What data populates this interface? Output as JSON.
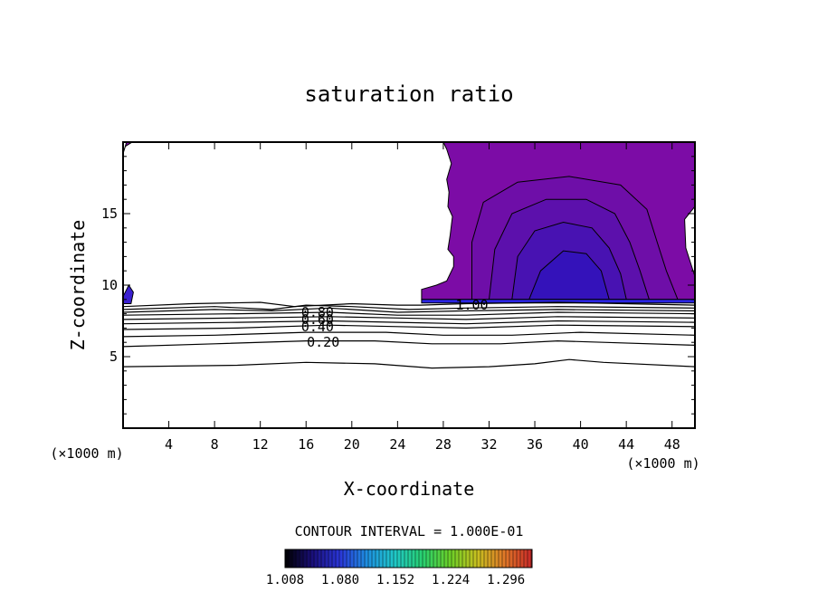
{
  "chart_data": {
    "type": "contour",
    "title": "saturation ratio",
    "xlabel": "X-coordinate",
    "ylabel": "Z-coordinate",
    "x_unit_left": "(×1000 m)",
    "x_unit_right": "(×1000 m)",
    "xlim": [
      0,
      50
    ],
    "ylim": [
      0,
      20
    ],
    "xticks": [
      4,
      8,
      12,
      16,
      20,
      24,
      28,
      32,
      36,
      40,
      44,
      48
    ],
    "yticks": [
      5,
      10,
      15
    ],
    "contour_interval_text": "CONTOUR INTERVAL = 1.000E-01",
    "colorbar": {
      "min": 1.008,
      "max": 1.33,
      "tick_labels": [
        "1.008",
        "1.080",
        "1.152",
        "1.224",
        "1.296"
      ],
      "colors": [
        "#000000",
        "#1a0f7a",
        "#2a36d8",
        "#1e90e0",
        "#20c8c8",
        "#28d070",
        "#6ad028",
        "#c8c020",
        "#e07828",
        "#c82828"
      ]
    },
    "contour_labels": [
      {
        "text": "0.20",
        "x": 17.5,
        "y": 6.0
      },
      {
        "text": "0.40",
        "x": 17.0,
        "y": 7.1
      },
      {
        "text": "0.60",
        "x": 17.0,
        "y": 7.6
      },
      {
        "text": "0.80",
        "x": 17.0,
        "y": 8.1
      },
      {
        "text": "1.00",
        "x": 30.5,
        "y": 8.6
      }
    ],
    "contour_lines": [
      {
        "value": 0.1,
        "points": [
          [
            0,
            4.3
          ],
          [
            10,
            4.4
          ],
          [
            16,
            4.6
          ],
          [
            22,
            4.5
          ],
          [
            27,
            4.2
          ],
          [
            32,
            4.3
          ],
          [
            36,
            4.5
          ],
          [
            39,
            4.8
          ],
          [
            42,
            4.6
          ],
          [
            50,
            4.3
          ]
        ]
      },
      {
        "value": 0.2,
        "points": [
          [
            0,
            5.7
          ],
          [
            8,
            5.9
          ],
          [
            16,
            6.1
          ],
          [
            22,
            6.1
          ],
          [
            27,
            5.9
          ],
          [
            33,
            5.9
          ],
          [
            38,
            6.1
          ],
          [
            42,
            6.0
          ],
          [
            50,
            5.8
          ]
        ]
      },
      {
        "value": 0.3,
        "points": [
          [
            0,
            6.4
          ],
          [
            8,
            6.5
          ],
          [
            16,
            6.7
          ],
          [
            23,
            6.7
          ],
          [
            28,
            6.5
          ],
          [
            34,
            6.5
          ],
          [
            40,
            6.7
          ],
          [
            50,
            6.5
          ]
        ]
      },
      {
        "value": 0.4,
        "points": [
          [
            0,
            6.9
          ],
          [
            10,
            7.0
          ],
          [
            18,
            7.2
          ],
          [
            24,
            7.1
          ],
          [
            30,
            7.0
          ],
          [
            38,
            7.2
          ],
          [
            50,
            7.1
          ]
        ]
      },
      {
        "value": 0.5,
        "points": [
          [
            0,
            7.3
          ],
          [
            10,
            7.4
          ],
          [
            18,
            7.5
          ],
          [
            24,
            7.4
          ],
          [
            30,
            7.3
          ],
          [
            38,
            7.5
          ],
          [
            50,
            7.4
          ]
        ]
      },
      {
        "value": 0.6,
        "points": [
          [
            0,
            7.6
          ],
          [
            10,
            7.7
          ],
          [
            18,
            7.8
          ],
          [
            24,
            7.7
          ],
          [
            30,
            7.6
          ],
          [
            38,
            7.8
          ],
          [
            50,
            7.7
          ]
        ]
      },
      {
        "value": 0.7,
        "points": [
          [
            0,
            7.9
          ],
          [
            10,
            8.0
          ],
          [
            18,
            8.1
          ],
          [
            24,
            7.9
          ],
          [
            30,
            7.9
          ],
          [
            38,
            8.1
          ],
          [
            50,
            8.0
          ]
        ]
      },
      {
        "value": 0.8,
        "points": [
          [
            0,
            8.1
          ],
          [
            8,
            8.3
          ],
          [
            13,
            8.2
          ],
          [
            18,
            8.4
          ],
          [
            24,
            8.1
          ],
          [
            30,
            8.2
          ],
          [
            38,
            8.3
          ],
          [
            50,
            8.2
          ]
        ]
      },
      {
        "value": 0.9,
        "points": [
          [
            0,
            8.3
          ],
          [
            8,
            8.5
          ],
          [
            13,
            8.3
          ],
          [
            16,
            8.6
          ],
          [
            20,
            8.5
          ],
          [
            25,
            8.3
          ],
          [
            30,
            8.4
          ],
          [
            38,
            8.5
          ],
          [
            50,
            8.4
          ]
        ]
      },
      {
        "value": 1.0,
        "points": [
          [
            0,
            8.5
          ],
          [
            6,
            8.7
          ],
          [
            12,
            8.8
          ],
          [
            15,
            8.5
          ],
          [
            20,
            8.7
          ],
          [
            24,
            8.6
          ],
          [
            26,
            8.6
          ],
          [
            30,
            8.7
          ],
          [
            38,
            8.8
          ],
          [
            50,
            8.6
          ]
        ]
      }
    ],
    "shaded_regions": [
      {
        "level": 1.02,
        "color": "#7c0ca6",
        "points": [
          [
            28.0,
            20
          ],
          [
            50,
            20
          ],
          [
            50,
            15.5
          ],
          [
            49.1,
            14.6
          ],
          [
            49.2,
            12.6
          ],
          [
            50,
            10.6
          ],
          [
            50,
            9.0
          ],
          [
            26.1,
            9.0
          ],
          [
            26.1,
            9.7
          ],
          [
            27.4,
            10.0
          ],
          [
            28.3,
            10.3
          ],
          [
            28.9,
            11.3
          ],
          [
            28.9,
            12.0
          ],
          [
            28.4,
            12.5
          ],
          [
            28.6,
            13.5
          ],
          [
            28.8,
            14.8
          ],
          [
            28.4,
            15.5
          ],
          [
            28.5,
            16.5
          ],
          [
            28.3,
            17.4
          ],
          [
            28.7,
            18.5
          ],
          [
            28.3,
            19.5
          ]
        ]
      },
      {
        "level": 1.04,
        "color": "#6e0ea8",
        "points": [
          [
            30.5,
            9
          ],
          [
            30.5,
            13
          ],
          [
            31.5,
            15.8
          ],
          [
            34.5,
            17.2
          ],
          [
            39,
            17.6
          ],
          [
            43.5,
            17.0
          ],
          [
            45.8,
            15.3
          ],
          [
            46.7,
            13.0
          ],
          [
            47.5,
            11.0
          ],
          [
            48.5,
            9
          ]
        ]
      },
      {
        "level": 1.06,
        "color": "#5c10ac",
        "points": [
          [
            32,
            9
          ],
          [
            32.5,
            12.5
          ],
          [
            34,
            15.0
          ],
          [
            37,
            16.0
          ],
          [
            40.5,
            16.0
          ],
          [
            43,
            15.0
          ],
          [
            44.3,
            13.0
          ],
          [
            45.2,
            11.0
          ],
          [
            46,
            9
          ]
        ]
      },
      {
        "level": 1.08,
        "color": "#4812b2",
        "points": [
          [
            34,
            9
          ],
          [
            34.5,
            12.0
          ],
          [
            36,
            13.8
          ],
          [
            38.5,
            14.4
          ],
          [
            41,
            14.0
          ],
          [
            42.5,
            12.6
          ],
          [
            43.5,
            10.8
          ],
          [
            44,
            9
          ]
        ]
      },
      {
        "level": 1.1,
        "color": "#3412ba",
        "points": [
          [
            35.5,
            9
          ],
          [
            36.5,
            11.0
          ],
          [
            38.5,
            12.4
          ],
          [
            40.5,
            12.2
          ],
          [
            41.8,
            11.0
          ],
          [
            42.5,
            9
          ]
        ]
      },
      {
        "level": 1.14,
        "color": "#2a24e0",
        "points": [
          [
            26.1,
            9.0
          ],
          [
            50,
            9.0
          ],
          [
            50,
            8.75
          ],
          [
            26.1,
            8.75
          ]
        ]
      },
      {
        "level": 1.12,
        "color": "#3a1fd0",
        "points": [
          [
            0,
            9.2
          ],
          [
            0.5,
            10.0
          ],
          [
            0.9,
            9.5
          ],
          [
            0.7,
            8.7
          ],
          [
            0,
            8.7
          ]
        ]
      },
      {
        "level": 1.02,
        "color": "#7c0ca6",
        "points": [
          [
            0,
            19.2
          ],
          [
            0.3,
            20
          ],
          [
            0.8,
            20
          ],
          [
            0.2,
            19.7
          ]
        ]
      }
    ]
  }
}
